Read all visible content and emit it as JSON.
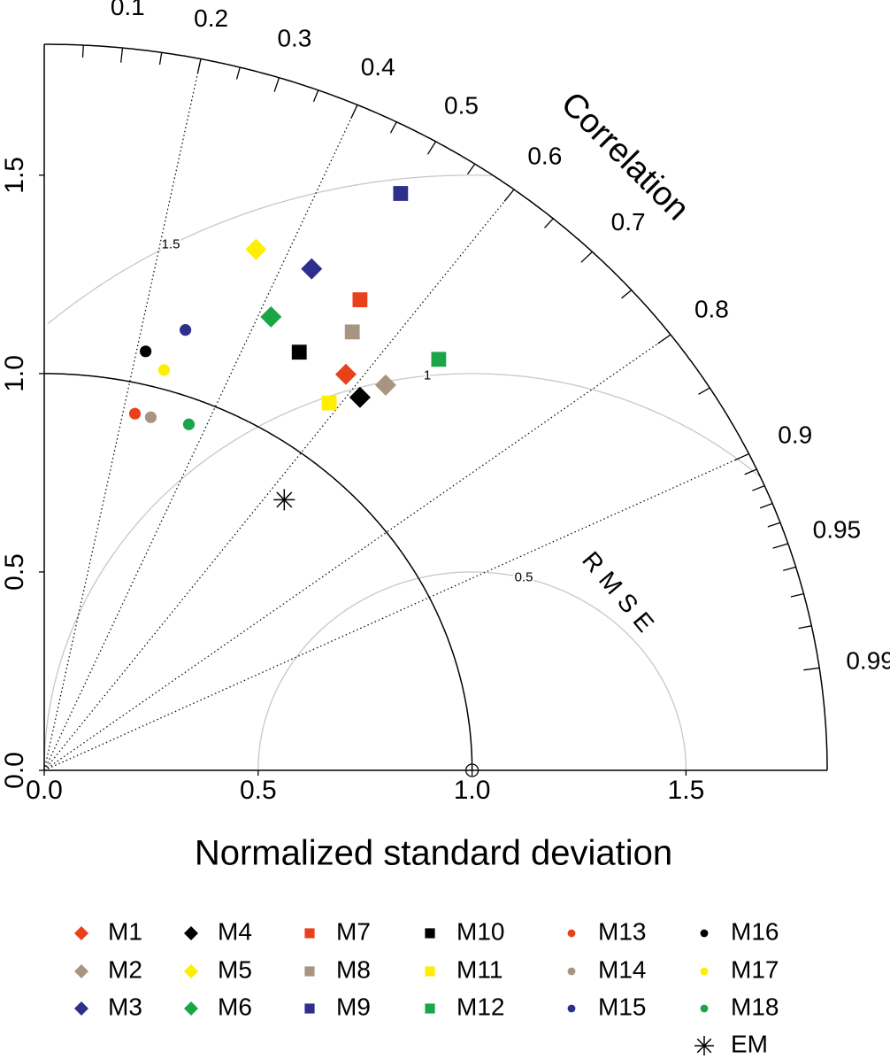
{
  "chart_data": {
    "type": "taylor",
    "xlabel": "Normalized standard deviation",
    "correlation_label": "Correlation",
    "rmse_label": "RMSE",
    "xlim": [
      0,
      1.83
    ],
    "ylim": [
      0,
      1.83
    ],
    "xticks": [
      {
        "value": 0,
        "label": "0.0"
      },
      0.5,
      {
        "value": 1,
        "label": "1.0"
      },
      1.5
    ],
    "yticks": [
      {
        "value": 0,
        "label": "0.0"
      },
      0.5,
      {
        "value": 1,
        "label": "1.0"
      },
      1.5
    ],
    "corr_ticks": [
      0.1,
      0.2,
      0.3,
      0.4,
      0.5,
      0.6,
      0.7,
      0.8,
      0.9,
      0.95,
      0.99
    ],
    "corr_minor_ticks": [
      0.05,
      0.15,
      0.25,
      0.35,
      0.45,
      0.55,
      0.65,
      0.75,
      0.85,
      0.91,
      0.92,
      0.93,
      0.94,
      0.96,
      0.97,
      0.98
    ],
    "corr_lines": [
      0.2,
      0.4,
      0.6,
      0.8,
      0.9
    ],
    "rmse_contours": [
      0.5,
      1,
      1.5
    ],
    "ref_std": 1,
    "series": [
      {
        "name": "M1",
        "color": "#e8411c",
        "marker": "diamond",
        "x": [
          0.705
        ],
        "y": [
          0.998
        ]
      },
      {
        "name": "M2",
        "color": "#a89580",
        "marker": "diamond",
        "x": [
          0.798
        ],
        "y": [
          0.971
        ]
      },
      {
        "name": "M3",
        "color": "#2e2e8c",
        "marker": "diamond",
        "x": [
          0.625
        ],
        "y": [
          1.264
        ]
      },
      {
        "name": "M4",
        "color": "#000000",
        "marker": "diamond",
        "x": [
          0.738
        ],
        "y": [
          0.94
        ]
      },
      {
        "name": "M5",
        "color": "#ffee00",
        "marker": "diamond",
        "x": [
          0.495
        ],
        "y": [
          1.313
        ]
      },
      {
        "name": "M6",
        "color": "#1aa648",
        "marker": "diamond",
        "x": [
          0.53
        ],
        "y": [
          1.143
        ]
      },
      {
        "name": "M7",
        "color": "#e8411c",
        "marker": "square",
        "x": [
          0.738
        ],
        "y": [
          1.186
        ]
      },
      {
        "name": "M8",
        "color": "#a89580",
        "marker": "square",
        "x": [
          0.72
        ],
        "y": [
          1.105
        ]
      },
      {
        "name": "M9",
        "color": "#2e2e8c",
        "marker": "square",
        "x": [
          0.833
        ],
        "y": [
          1.454
        ]
      },
      {
        "name": "M10",
        "color": "#000000",
        "marker": "square",
        "x": [
          0.596
        ],
        "y": [
          1.054
        ]
      },
      {
        "name": "M11",
        "color": "#ffee00",
        "marker": "square",
        "x": [
          0.666
        ],
        "y": [
          0.926
        ]
      },
      {
        "name": "M12",
        "color": "#1aa648",
        "marker": "square",
        "x": [
          0.922
        ],
        "y": [
          1.036
        ]
      },
      {
        "name": "M13",
        "color": "#e8411c",
        "marker": "circle",
        "x": [
          0.212
        ],
        "y": [
          0.899
        ]
      },
      {
        "name": "M14",
        "color": "#a89580",
        "marker": "circle",
        "x": [
          0.249
        ],
        "y": [
          0.89
        ]
      },
      {
        "name": "M15",
        "color": "#2e2e8c",
        "marker": "circle",
        "x": [
          0.33
        ],
        "y": [
          1.11
        ]
      },
      {
        "name": "M16",
        "color": "#000000",
        "marker": "circle",
        "x": [
          0.237
        ],
        "y": [
          1.056
        ]
      },
      {
        "name": "M17",
        "color": "#ffee00",
        "marker": "circle",
        "x": [
          0.28
        ],
        "y": [
          1.009
        ]
      },
      {
        "name": "M18",
        "color": "#1aa648",
        "marker": "circle",
        "x": [
          0.338
        ],
        "y": [
          0.872
        ]
      },
      {
        "name": "EM",
        "color": "#000000",
        "marker": "asterisk",
        "x": [
          0.561
        ],
        "y": [
          0.682
        ]
      }
    ]
  }
}
